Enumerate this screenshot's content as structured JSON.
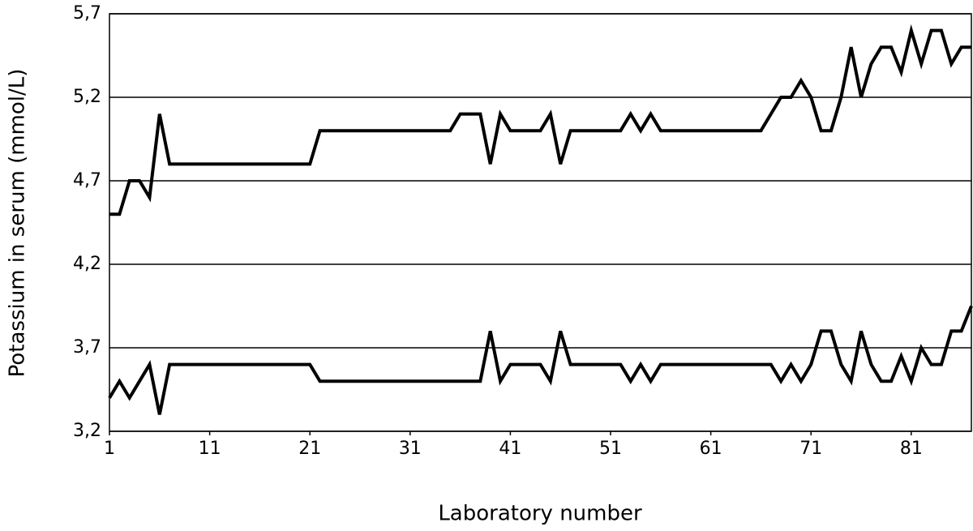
{
  "chart_data": {
    "type": "line",
    "x_label": "Laboratory number",
    "y_label": "Potassium in serum (mmol/L)",
    "x": [
      1,
      2,
      3,
      4,
      5,
      6,
      7,
      8,
      9,
      10,
      11,
      12,
      13,
      14,
      15,
      16,
      17,
      18,
      19,
      20,
      21,
      22,
      23,
      24,
      25,
      26,
      27,
      28,
      29,
      30,
      31,
      32,
      33,
      34,
      35,
      36,
      37,
      38,
      39,
      40,
      41,
      42,
      43,
      44,
      45,
      46,
      47,
      48,
      49,
      50,
      51,
      52,
      53,
      54,
      55,
      56,
      57,
      58,
      59,
      60,
      61,
      62,
      63,
      64,
      65,
      66,
      67,
      68,
      69,
      70,
      71,
      72,
      73,
      74,
      75,
      76,
      77,
      78,
      79,
      80,
      81,
      82,
      83,
      84,
      85,
      86,
      87
    ],
    "series": [
      {
        "color": "#000000",
        "values": [
          4.5,
          4.5,
          4.7,
          4.7,
          4.6,
          5.1,
          4.8,
          4.8,
          4.8,
          4.8,
          4.8,
          4.8,
          4.8,
          4.8,
          4.8,
          4.8,
          4.8,
          4.8,
          4.8,
          4.8,
          4.8,
          5.0,
          5.0,
          5.0,
          5.0,
          5.0,
          5.0,
          5.0,
          5.0,
          5.0,
          5.0,
          5.0,
          5.0,
          5.0,
          5.0,
          5.1,
          5.1,
          5.1,
          4.8,
          5.1,
          5.0,
          5.0,
          5.0,
          5.0,
          5.1,
          4.8,
          5.0,
          5.0,
          5.0,
          5.0,
          5.0,
          5.0,
          5.1,
          5.0,
          5.1,
          5.0,
          5.0,
          5.0,
          5.0,
          5.0,
          5.0,
          5.0,
          5.0,
          5.0,
          5.0,
          5.0,
          5.1,
          5.2,
          5.2,
          5.3,
          5.2,
          5.0,
          5.0,
          5.2,
          5.5,
          5.2,
          5.4,
          5.5,
          5.5,
          5.35,
          5.6,
          5.4,
          5.6,
          5.6,
          5.4,
          5.5,
          5.5
        ]
      },
      {
        "color": "#000000",
        "values": [
          3.4,
          3.5,
          3.4,
          3.5,
          3.6,
          3.3,
          3.6,
          3.6,
          3.6,
          3.6,
          3.6,
          3.6,
          3.6,
          3.6,
          3.6,
          3.6,
          3.6,
          3.6,
          3.6,
          3.6,
          3.6,
          3.5,
          3.5,
          3.5,
          3.5,
          3.5,
          3.5,
          3.5,
          3.5,
          3.5,
          3.5,
          3.5,
          3.5,
          3.5,
          3.5,
          3.5,
          3.5,
          3.5,
          3.8,
          3.5,
          3.6,
          3.6,
          3.6,
          3.6,
          3.5,
          3.8,
          3.6,
          3.6,
          3.6,
          3.6,
          3.6,
          3.6,
          3.5,
          3.6,
          3.5,
          3.6,
          3.6,
          3.6,
          3.6,
          3.6,
          3.6,
          3.6,
          3.6,
          3.6,
          3.6,
          3.6,
          3.6,
          3.5,
          3.6,
          3.5,
          3.6,
          3.8,
          3.8,
          3.6,
          3.5,
          3.8,
          3.6,
          3.5,
          3.5,
          3.65,
          3.5,
          3.7,
          3.6,
          3.6,
          3.8,
          3.8,
          3.95
        ]
      }
    ],
    "xlim": [
      1,
      87
    ],
    "xticks": [
      1,
      11,
      21,
      31,
      41,
      51,
      61,
      71,
      81
    ],
    "ylim": [
      3.2,
      5.7
    ],
    "yticks": [
      {
        "value": 3.2,
        "label": "3,2"
      },
      {
        "value": 3.7,
        "label": "3,7"
      },
      {
        "value": 4.2,
        "label": "4,2"
      },
      {
        "value": 4.7,
        "label": "4,7"
      },
      {
        "value": 5.2,
        "label": "5,2"
      },
      {
        "value": 5.7,
        "label": "5,7"
      }
    ],
    "grid": true
  }
}
